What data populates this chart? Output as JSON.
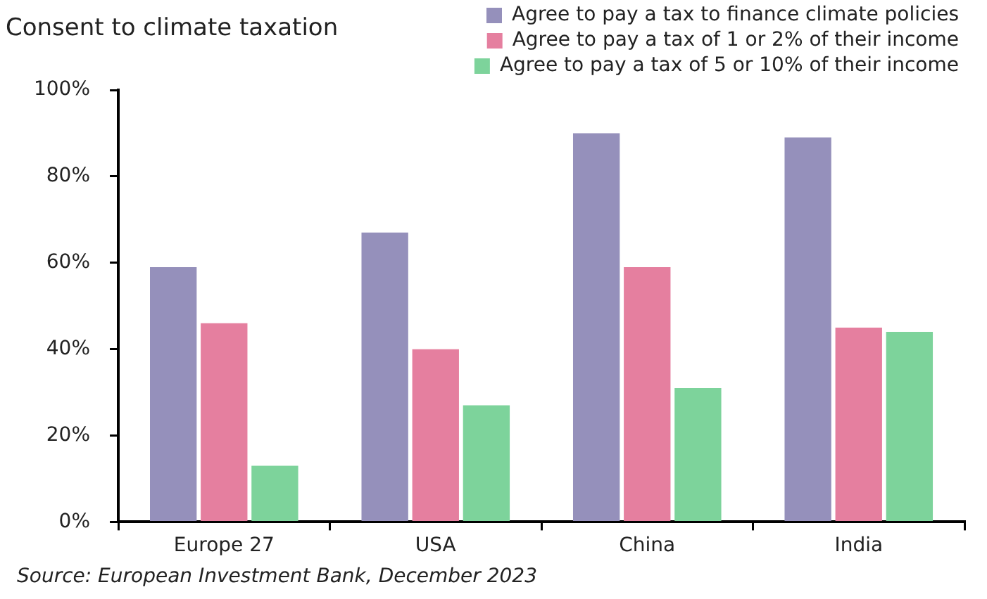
{
  "chart_data": {
    "type": "bar",
    "title": "Consent to climate taxation",
    "categories": [
      "Europe 27",
      "USA",
      "China",
      "India"
    ],
    "series": [
      {
        "name": "Agree to pay a tax to finance climate policies",
        "color": "#9590bb",
        "values": [
          59,
          67,
          90,
          89
        ]
      },
      {
        "name": "Agree to pay a tax of 1 or 2% of their income",
        "color": "#e57f9f",
        "values": [
          46,
          40,
          59,
          45
        ]
      },
      {
        "name": "Agree to pay a tax of 5 or 10% of their income",
        "color": "#7dd39b",
        "values": [
          13,
          27,
          31,
          44
        ]
      }
    ],
    "ylim": [
      0,
      100
    ],
    "yticks": [
      {
        "value": 0,
        "label": "0%"
      },
      {
        "value": 20,
        "label": "20%"
      },
      {
        "value": 40,
        "label": "40%"
      },
      {
        "value": 60,
        "label": "60%"
      },
      {
        "value": 80,
        "label": "80%"
      },
      {
        "value": 100,
        "label": "100%"
      }
    ],
    "grid": false,
    "legend": "top right",
    "annotations": [
      "Source: European Investment Bank, December 2023"
    ]
  }
}
